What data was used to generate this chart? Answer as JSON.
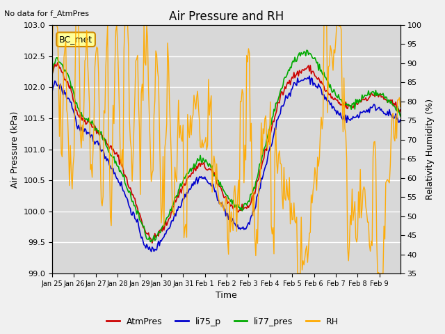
{
  "title": "Air Pressure and RH",
  "top_left_text": "No data for f_AtmPres",
  "xlabel": "Time",
  "ylabel_left": "Air Pressure (kPa)",
  "ylabel_right": "Relativity Humidity (%)",
  "ylim_left": [
    99.0,
    103.0
  ],
  "ylim_right": [
    35,
    100
  ],
  "yticks_left": [
    99.0,
    99.5,
    100.0,
    100.5,
    101.0,
    101.5,
    102.0,
    102.5,
    103.0
  ],
  "yticks_right": [
    35,
    40,
    45,
    50,
    55,
    60,
    65,
    70,
    75,
    80,
    85,
    90,
    95,
    100
  ],
  "bg_color": "#f0f0f0",
  "plot_bg_color": "#d8d8d8",
  "line_colors": {
    "AtmPres": "#cc0000",
    "li75_p": "#0000cc",
    "li77_pres": "#00aa00",
    "RH": "#ffaa00"
  },
  "line_widths": {
    "AtmPres": 1.2,
    "li75_p": 1.2,
    "li77_pres": 1.2,
    "RH": 1.0
  },
  "label_box": "BC_met",
  "label_box_color": "#ffff99",
  "label_box_edge": "#cc8800",
  "xtick_labels": [
    "Jan 25",
    "Jan 26",
    "Jan 27",
    "Jan 28",
    "Jan 29",
    "Jan 30",
    "Jan 31",
    "Feb 1",
    "Feb 2",
    "Feb 3",
    "Feb 4",
    "Feb 5",
    "Feb 6",
    "Feb 7",
    "Feb 8",
    "Feb 9"
  ],
  "n_days": 16,
  "pts_per_day": 24
}
